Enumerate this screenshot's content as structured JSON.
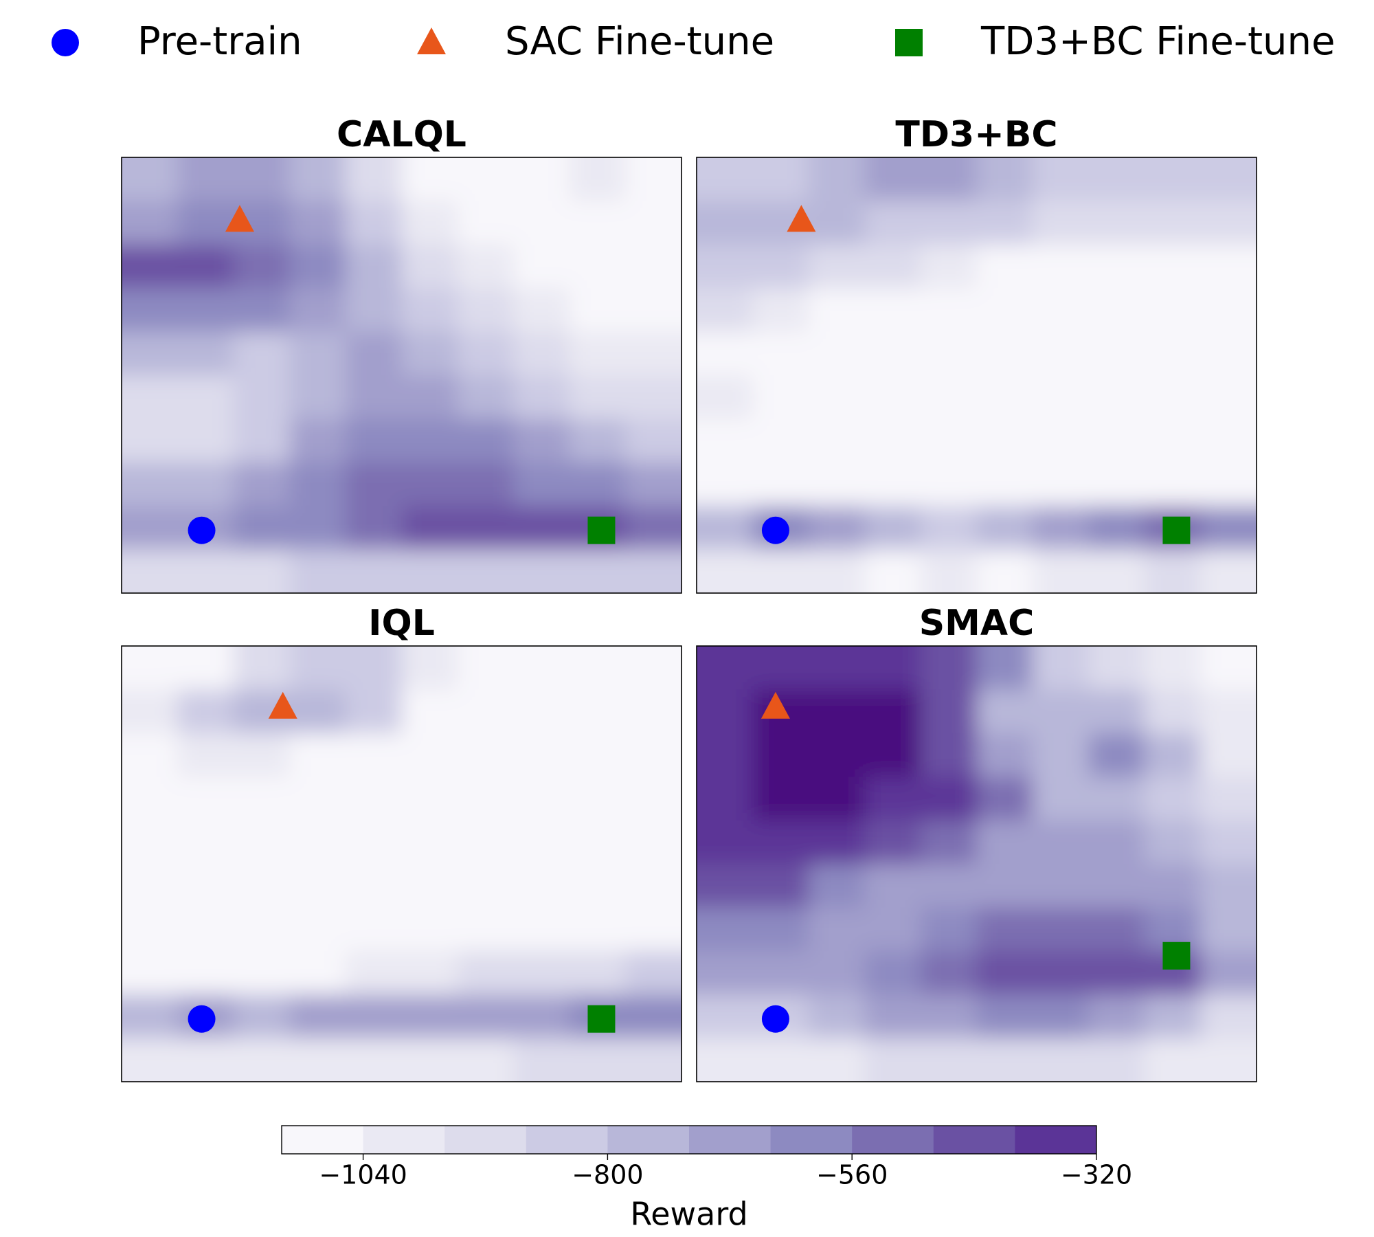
{
  "chart_data": [
    {
      "type": "contour",
      "title": "CALQL",
      "xlim": [
        0,
        1
      ],
      "ylim": [
        0,
        1
      ],
      "z": [
        [
          -760,
          -680,
          -680,
          -760,
          -920,
          -1080,
          -1080,
          -1080,
          -1000,
          -1080
        ],
        [
          -680,
          -600,
          -600,
          -680,
          -840,
          -1000,
          -1080,
          -1080,
          -1080,
          -1080
        ],
        [
          -440,
          -440,
          -520,
          -600,
          -760,
          -920,
          -1000,
          -1080,
          -1080,
          -1080
        ],
        [
          -600,
          -600,
          -600,
          -680,
          -760,
          -840,
          -920,
          -1000,
          -1080,
          -1080
        ],
        [
          -760,
          -760,
          -840,
          -760,
          -680,
          -760,
          -840,
          -920,
          -1000,
          -1000
        ],
        [
          -920,
          -920,
          -840,
          -760,
          -680,
          -680,
          -760,
          -840,
          -920,
          -920
        ],
        [
          -920,
          -920,
          -840,
          -680,
          -600,
          -600,
          -600,
          -680,
          -760,
          -840
        ],
        [
          -760,
          -760,
          -680,
          -600,
          -520,
          -520,
          -520,
          -600,
          -600,
          -680
        ],
        [
          -680,
          -680,
          -600,
          -600,
          -520,
          -440,
          -440,
          -440,
          -440,
          -520
        ],
        [
          -920,
          -920,
          -920,
          -840,
          -840,
          -840,
          -840,
          -840,
          -840,
          -840
        ]
      ],
      "series": [
        {
          "name": "Pre-train",
          "color": "#0000ff",
          "marker": "circle",
          "x": [
            0.143
          ],
          "values": [
            0.144
          ]
        },
        {
          "name": "SAC Fine-tune",
          "color": "#e8561a",
          "marker": "triangle",
          "x": [
            0.211
          ],
          "values": [
            0.856
          ]
        },
        {
          "name": "TD3+BC Fine-tune",
          "color": "#008000",
          "marker": "square",
          "x": [
            0.857
          ],
          "values": [
            0.144
          ]
        }
      ]
    },
    {
      "type": "contour",
      "title": "TD3+BC",
      "xlim": [
        0,
        1
      ],
      "ylim": [
        0,
        1
      ],
      "z": [
        [
          -840,
          -840,
          -760,
          -680,
          -680,
          -760,
          -840,
          -840,
          -840,
          -840
        ],
        [
          -760,
          -760,
          -760,
          -840,
          -840,
          -840,
          -920,
          -920,
          -920,
          -920
        ],
        [
          -840,
          -840,
          -920,
          -920,
          -1000,
          -1080,
          -1080,
          -1080,
          -1080,
          -1080
        ],
        [
          -920,
          -1000,
          -1080,
          -1080,
          -1080,
          -1080,
          -1080,
          -1080,
          -1080,
          -1080
        ],
        [
          -1080,
          -1080,
          -1080,
          -1080,
          -1080,
          -1080,
          -1080,
          -1080,
          -1080,
          -1080
        ],
        [
          -1000,
          -1080,
          -1080,
          -1080,
          -1080,
          -1080,
          -1080,
          -1080,
          -1080,
          -1080
        ],
        [
          -1080,
          -1080,
          -1080,
          -1080,
          -1080,
          -1080,
          -1080,
          -1080,
          -1080,
          -1080
        ],
        [
          -1080,
          -1080,
          -1080,
          -1080,
          -1080,
          -1080,
          -1080,
          -1080,
          -1080,
          -1080
        ],
        [
          -760,
          -600,
          -680,
          -760,
          -840,
          -760,
          -680,
          -600,
          -520,
          -600
        ],
        [
          -1000,
          -1000,
          -1000,
          -1080,
          -1000,
          -1080,
          -1000,
          -1000,
          -920,
          -1000
        ]
      ],
      "series": [
        {
          "name": "Pre-train",
          "color": "#0000ff",
          "marker": "circle",
          "x": [
            0.141
          ],
          "values": [
            0.144
          ]
        },
        {
          "name": "SAC Fine-tune",
          "color": "#e8561a",
          "marker": "triangle",
          "x": [
            0.187
          ],
          "values": [
            0.856
          ]
        },
        {
          "name": "TD3+BC Fine-tune",
          "color": "#008000",
          "marker": "square",
          "x": [
            0.857
          ],
          "values": [
            0.144
          ]
        }
      ]
    },
    {
      "type": "contour",
      "title": "IQL",
      "xlim": [
        0,
        1
      ],
      "ylim": [
        0,
        1
      ],
      "z": [
        [
          -1080,
          -1080,
          -920,
          -840,
          -840,
          -1000,
          -1080,
          -1080,
          -1080,
          -1080
        ],
        [
          -1000,
          -840,
          -760,
          -760,
          -840,
          -1080,
          -1080,
          -1080,
          -1080,
          -1080
        ],
        [
          -1080,
          -1000,
          -1000,
          -1080,
          -1080,
          -1080,
          -1080,
          -1080,
          -1080,
          -1080
        ],
        [
          -1080,
          -1080,
          -1080,
          -1080,
          -1080,
          -1080,
          -1080,
          -1080,
          -1080,
          -1080
        ],
        [
          -1080,
          -1080,
          -1080,
          -1080,
          -1080,
          -1080,
          -1080,
          -1080,
          -1080,
          -1080
        ],
        [
          -1080,
          -1080,
          -1080,
          -1080,
          -1080,
          -1080,
          -1080,
          -1080,
          -1080,
          -1080
        ],
        [
          -1080,
          -1080,
          -1080,
          -1080,
          -1080,
          -1080,
          -1080,
          -1080,
          -1080,
          -1080
        ],
        [
          -1080,
          -1080,
          -1080,
          -1080,
          -1000,
          -1000,
          -920,
          -920,
          -920,
          -840
        ],
        [
          -760,
          -680,
          -760,
          -680,
          -680,
          -680,
          -680,
          -680,
          -600,
          -600
        ],
        [
          -1000,
          -1000,
          -1000,
          -1000,
          -1000,
          -1000,
          -1000,
          -920,
          -920,
          -920
        ]
      ],
      "series": [
        {
          "name": "Pre-train",
          "color": "#0000ff",
          "marker": "circle",
          "x": [
            0.143
          ],
          "values": [
            0.144
          ]
        },
        {
          "name": "SAC Fine-tune",
          "color": "#e8561a",
          "marker": "triangle",
          "x": [
            0.288
          ],
          "values": [
            0.86
          ]
        },
        {
          "name": "TD3+BC Fine-tune",
          "color": "#008000",
          "marker": "square",
          "x": [
            0.857
          ],
          "values": [
            0.144
          ]
        }
      ]
    },
    {
      "type": "contour",
      "title": "SMAC",
      "xlim": [
        0,
        1
      ],
      "ylim": [
        0,
        1
      ],
      "z": [
        [
          -360,
          -360,
          -360,
          -360,
          -440,
          -600,
          -840,
          -920,
          -1000,
          -1080
        ],
        [
          -360,
          -280,
          -280,
          -280,
          -440,
          -760,
          -760,
          -760,
          -920,
          -1000
        ],
        [
          -360,
          -280,
          -280,
          -280,
          -440,
          -680,
          -760,
          -600,
          -760,
          -1000
        ],
        [
          -360,
          -280,
          -280,
          -360,
          -360,
          -520,
          -760,
          -760,
          -840,
          -920
        ],
        [
          -360,
          -360,
          -360,
          -440,
          -520,
          -680,
          -680,
          -680,
          -760,
          -840
        ],
        [
          -440,
          -440,
          -600,
          -680,
          -680,
          -680,
          -680,
          -680,
          -680,
          -760
        ],
        [
          -600,
          -600,
          -680,
          -680,
          -600,
          -520,
          -520,
          -520,
          -600,
          -760
        ],
        [
          -680,
          -680,
          -680,
          -600,
          -520,
          -440,
          -440,
          -440,
          -440,
          -680
        ],
        [
          -840,
          -840,
          -760,
          -680,
          -680,
          -600,
          -600,
          -680,
          -760,
          -920
        ],
        [
          -1000,
          -1000,
          -1000,
          -920,
          -920,
          -920,
          -920,
          -920,
          -1000,
          -1000
        ]
      ],
      "series": [
        {
          "name": "Pre-train",
          "color": "#0000ff",
          "marker": "circle",
          "x": [
            0.141
          ],
          "values": [
            0.144
          ]
        },
        {
          "name": "SAC Fine-tune",
          "color": "#e8561a",
          "marker": "triangle",
          "x": [
            0.141
          ],
          "values": [
            0.86
          ]
        },
        {
          "name": "TD3+BC Fine-tune",
          "color": "#008000",
          "marker": "square",
          "x": [
            0.857
          ],
          "values": [
            0.289
          ]
        }
      ]
    }
  ],
  "colorbar": {
    "label": "Reward",
    "lim": [
      -1120,
      -320
    ],
    "ticks": [
      {
        "value": -1040,
        "label": "−1040"
      },
      {
        "value": -800,
        "label": "−800"
      },
      {
        "value": -560,
        "label": "−560"
      },
      {
        "value": -320,
        "label": "−320"
      }
    ],
    "colors": [
      "#f8f7fb",
      "#eae9f3",
      "#dddcec",
      "#cccbe4",
      "#b8b7d9",
      "#a29fcc",
      "#8d8ac1",
      "#7b6eb1",
      "#6a51a3",
      "#5b3497"
    ],
    "over_color": "#48087f"
  }
}
